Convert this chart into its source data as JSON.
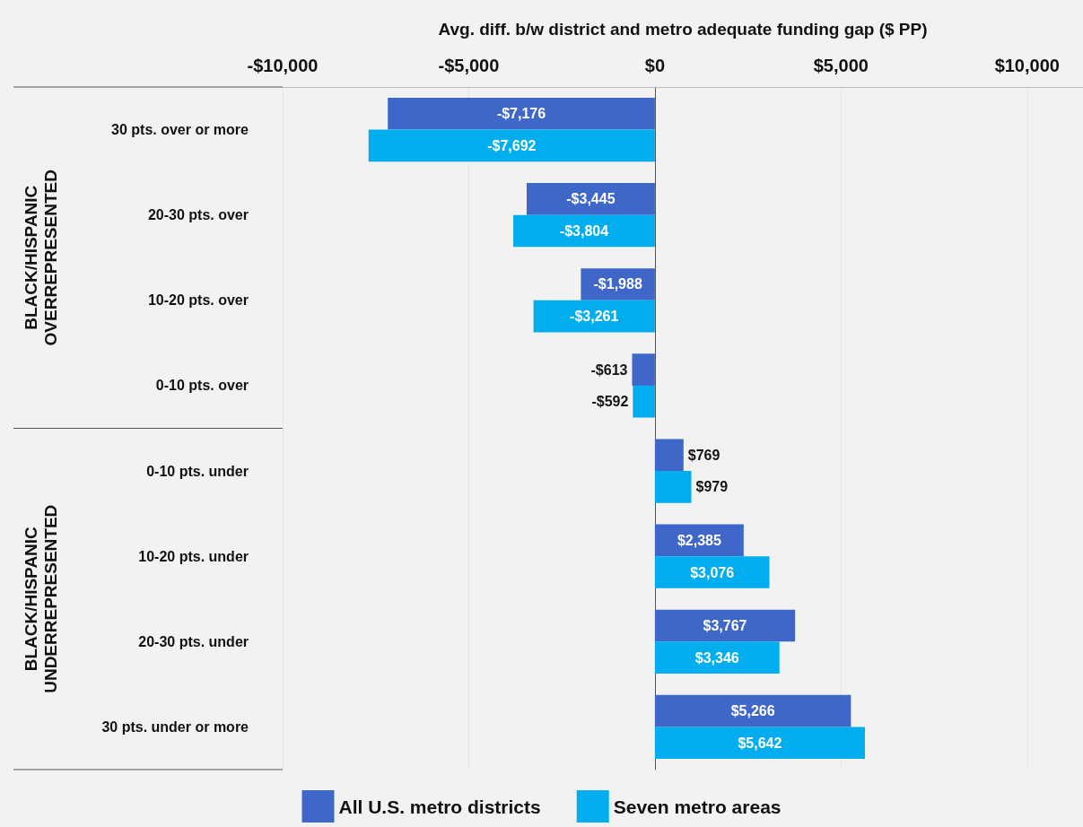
{
  "chart_data": {
    "type": "bar",
    "orientation": "horizontal",
    "xlabel": "Avg. diff. b/w district and metro adequate funding gap ($ PP)",
    "categories": [
      "30 pts. over or more",
      "20-30 pts. over",
      "10-20 pts. over",
      "0-10 pts. over",
      "0-10 pts. under",
      "10-20 pts. under",
      "20-30 pts. under",
      "30 pts. under or more"
    ],
    "series": [
      {
        "name": "All U.S. metro districts",
        "color": "#3f66c9",
        "values": [
          -7176,
          -3445,
          -1988,
          -613,
          769,
          2385,
          3767,
          5266
        ],
        "value_labels": [
          "-$7,176",
          "-$3,445",
          "-$1,988",
          "-$613",
          "$769",
          "$2,385",
          "$3,767",
          "$5,266"
        ]
      },
      {
        "name": "Seven metro areas",
        "color": "#00aeef",
        "values": [
          -7692,
          -3804,
          -3261,
          -592,
          979,
          3076,
          3346,
          5642
        ],
        "value_labels": [
          "-$7,692",
          "-$3,804",
          "-$3,261",
          "-$592",
          "$979",
          "$3,076",
          "$3,346",
          "$5,642"
        ]
      }
    ],
    "xlim": [
      -10000,
      11500
    ],
    "xticks": [
      {
        "value": -10000,
        "label": "-$10,000"
      },
      {
        "value": -5000,
        "label": "-$5,000"
      },
      {
        "value": 0,
        "label": "$0"
      },
      {
        "value": 5000,
        "label": "$5,000"
      },
      {
        "value": 10000,
        "label": "$10,000"
      }
    ],
    "grid": "x",
    "legend": "bottom",
    "annotations": [
      "BLACK/HISPANIC OVERREPRESENTED",
      "BLACK/HISPANIC UNDERREPRESENTED"
    ]
  }
}
